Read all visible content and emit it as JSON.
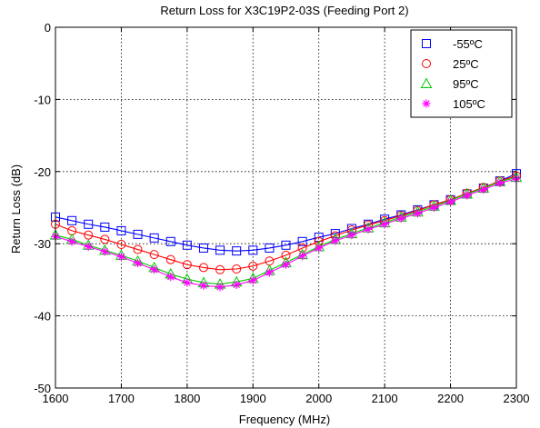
{
  "chart_data": {
    "type": "line",
    "title": "Return Loss for X3C19P2-03S (Feeding Port 2)",
    "xlabel": "Frequency (MHz)",
    "ylabel": "Return Loss (dB)",
    "xlim": [
      1600,
      2300
    ],
    "ylim": [
      -50,
      0
    ],
    "xticks": [
      "1600",
      "1700",
      "1800",
      "1900",
      "2000",
      "2100",
      "2200",
      "2300"
    ],
    "yticks": [
      "0",
      "-10",
      "-20",
      "-30",
      "-40",
      "-50"
    ],
    "grid": true,
    "legend_position": "top-right",
    "x": [
      1600,
      1625,
      1650,
      1675,
      1700,
      1725,
      1750,
      1775,
      1800,
      1825,
      1850,
      1875,
      1900,
      1925,
      1950,
      1975,
      2000,
      2025,
      2050,
      2075,
      2100,
      2125,
      2150,
      2175,
      2200,
      2225,
      2250,
      2275,
      2300
    ],
    "series": [
      {
        "name": "-55ºC",
        "color": "#0000ff",
        "marker": "square",
        "values": [
          -26.3,
          -26.8,
          -27.3,
          -27.7,
          -28.2,
          -28.7,
          -29.2,
          -29.7,
          -30.2,
          -30.6,
          -30.9,
          -31.0,
          -30.9,
          -30.6,
          -30.2,
          -29.7,
          -29.1,
          -28.6,
          -27.9,
          -27.3,
          -26.6,
          -26.0,
          -25.3,
          -24.6,
          -23.9,
          -23.1,
          -22.3,
          -21.3,
          -20.3
        ]
      },
      {
        "name": "25ºC",
        "color": "#ff0000",
        "marker": "circle",
        "values": [
          -27.3,
          -28.2,
          -28.8,
          -29.4,
          -30.1,
          -30.8,
          -31.5,
          -32.2,
          -32.9,
          -33.3,
          -33.6,
          -33.5,
          -33.1,
          -32.4,
          -31.6,
          -30.6,
          -29.7,
          -28.9,
          -28.1,
          -27.4,
          -26.8,
          -26.1,
          -25.4,
          -24.6,
          -23.9,
          -23.0,
          -22.2,
          -21.3,
          -20.6
        ]
      },
      {
        "name": "95ºC",
        "color": "#00cc00",
        "marker": "triangle",
        "values": [
          -28.8,
          -29.4,
          -30.2,
          -30.9,
          -31.6,
          -32.4,
          -33.3,
          -34.2,
          -34.9,
          -35.4,
          -35.6,
          -35.3,
          -34.8,
          -33.7,
          -32.6,
          -31.5,
          -30.4,
          -29.4,
          -28.6,
          -27.8,
          -27.1,
          -26.3,
          -25.6,
          -24.8,
          -24.0,
          -23.1,
          -22.3,
          -21.4,
          -20.8
        ]
      },
      {
        "name": "105ºC",
        "color": "#ff00ff",
        "marker": "star",
        "values": [
          -29.0,
          -29.7,
          -30.4,
          -31.1,
          -31.8,
          -32.7,
          -33.6,
          -34.6,
          -35.4,
          -35.8,
          -36.0,
          -35.7,
          -35.1,
          -34.0,
          -32.9,
          -31.7,
          -30.6,
          -29.6,
          -28.8,
          -28.0,
          -27.3,
          -26.5,
          -25.8,
          -25.0,
          -24.2,
          -23.3,
          -22.5,
          -21.6,
          -21.0
        ]
      }
    ]
  }
}
